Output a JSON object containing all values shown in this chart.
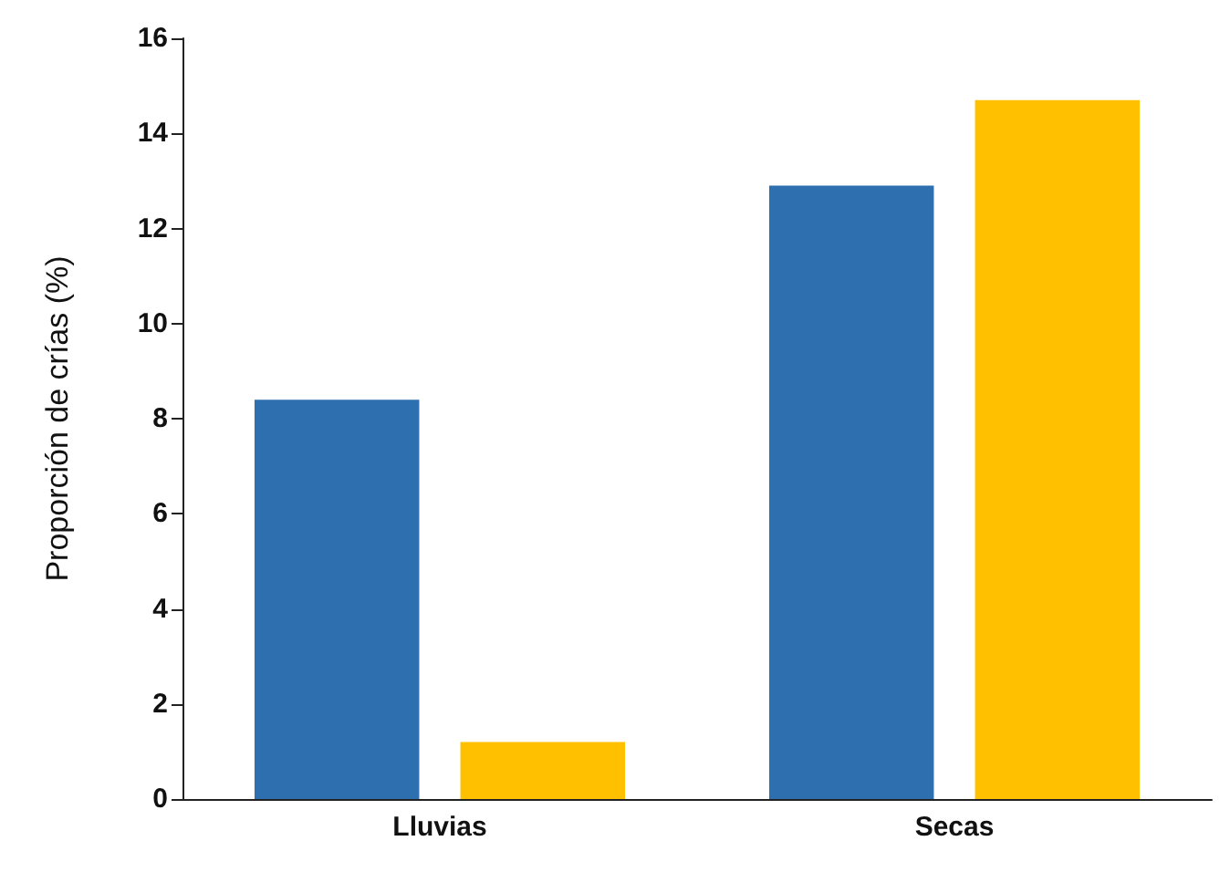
{
  "chart_data": {
    "type": "bar",
    "ylabel": "Proporción de crías (%)",
    "categories": [
      "Lluvias",
      "Secas"
    ],
    "series": [
      {
        "color": "#2e6fb0",
        "values": [
          8.4,
          12.9
        ]
      },
      {
        "color": "#ffc000",
        "values": [
          1.2,
          14.7
        ]
      }
    ],
    "ylim": [
      0,
      16
    ],
    "yticks": [
      0,
      2,
      4,
      6,
      8,
      10,
      12,
      14,
      16
    ],
    "grid": false
  }
}
